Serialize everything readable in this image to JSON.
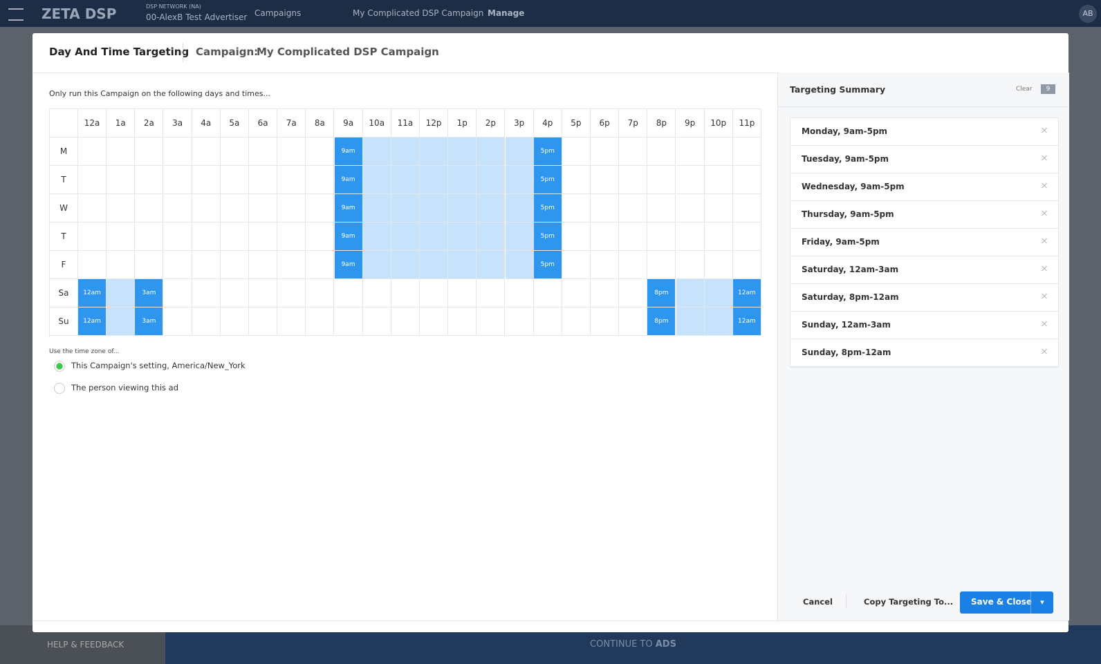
{
  "topbar": {
    "logo": "ZETA DSP",
    "network": "DSP NETWORK (NA)",
    "advertiser": "00-AlexB Test Advertiser",
    "breadcrumbs": [
      "Campaigns",
      "My Complicated DSP Campaign",
      "Manage"
    ],
    "user": "AB"
  },
  "modal": {
    "title": "Day And Time Targeting",
    "campaign_label": "Campaign:",
    "campaign_name": "My Complicated DSP Campaign",
    "instruction": "Only run this Campaign on the following days and times...",
    "hours": [
      "12a",
      "1a",
      "2a",
      "3a",
      "4a",
      "5a",
      "6a",
      "7a",
      "8a",
      "9a",
      "10a",
      "11a",
      "12p",
      "1p",
      "2p",
      "3p",
      "4p",
      "5p",
      "6p",
      "7p",
      "8p",
      "9p",
      "10p",
      "11p"
    ],
    "rows": [
      {
        "day": "M",
        "ranges": [
          {
            "from": 9,
            "to": 16,
            "from_label": "9am",
            "to_label": "5pm"
          }
        ]
      },
      {
        "day": "T",
        "ranges": [
          {
            "from": 9,
            "to": 16,
            "from_label": "9am",
            "to_label": "5pm"
          }
        ]
      },
      {
        "day": "W",
        "ranges": [
          {
            "from": 9,
            "to": 16,
            "from_label": "9am",
            "to_label": "5pm"
          }
        ]
      },
      {
        "day": "T",
        "ranges": [
          {
            "from": 9,
            "to": 16,
            "from_label": "9am",
            "to_label": "5pm"
          }
        ]
      },
      {
        "day": "F",
        "ranges": [
          {
            "from": 9,
            "to": 16,
            "from_label": "9am",
            "to_label": "5pm"
          }
        ]
      },
      {
        "day": "Sa",
        "ranges": [
          {
            "from": 0,
            "to": 2,
            "from_label": "12am",
            "to_label": "3am"
          },
          {
            "from": 20,
            "to": 23,
            "from_label": "8pm",
            "to_label": "12am"
          }
        ]
      },
      {
        "day": "Su",
        "ranges": [
          {
            "from": 0,
            "to": 2,
            "from_label": "12am",
            "to_label": "3am"
          },
          {
            "from": 20,
            "to": 23,
            "from_label": "8pm",
            "to_label": "12am"
          }
        ]
      }
    ],
    "timezone": {
      "label": "Use the time zone of...",
      "options": [
        {
          "text": "This Campaign's setting, America/New_York",
          "selected": true
        },
        {
          "text": "The person viewing this ad",
          "selected": false
        }
      ]
    },
    "summary": {
      "title": "Targeting Summary",
      "clear": "Clear",
      "count": 9,
      "items": [
        "Monday, 9am-5pm",
        "Tuesday, 9am-5pm",
        "Wednesday, 9am-5pm",
        "Thursday, 9am-5pm",
        "Friday, 9am-5pm",
        "Saturday, 12am-3am",
        "Saturday, 8pm-12am",
        "Sunday, 12am-3am",
        "Sunday, 8pm-12am"
      ]
    },
    "footer": {
      "cancel": "Cancel",
      "copy": "Copy Targeting To...",
      "save": "Save & Close"
    }
  },
  "bottom": {
    "help": "HELP & FEEDBACK",
    "continue": "CONTINUE TO",
    "continue_bold": "ADS"
  }
}
